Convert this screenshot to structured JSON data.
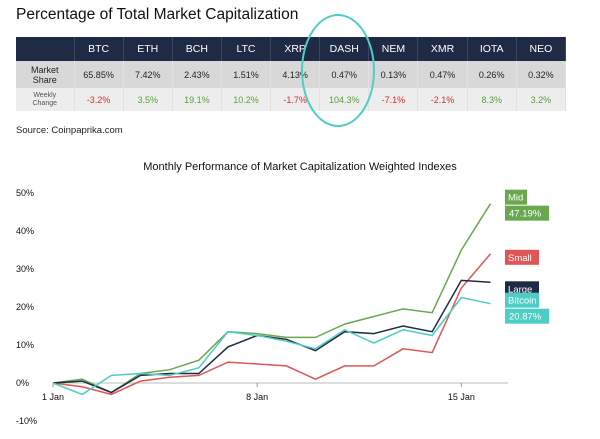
{
  "header": {
    "title": "Percentage of Total Market Capitalization",
    "source": "Source: Coinpaprika.com"
  },
  "table": {
    "coins": [
      "BTC",
      "ETH",
      "BCH",
      "LTC",
      "XRP",
      "DASH",
      "NEM",
      "XMR",
      "IOTA",
      "NEO"
    ],
    "rows": [
      {
        "label_lines": [
          "Market",
          "Share"
        ],
        "values": [
          "65.85%",
          "7.42%",
          "2.43%",
          "1.51%",
          "4.13%",
          "0.47%",
          "0.13%",
          "0.47%",
          "0.26%",
          "0.32%"
        ]
      },
      {
        "label_lines": [
          "Weekly",
          "Change"
        ],
        "values": [
          "-3.2%",
          "3.5%",
          "19.1%",
          "10.2%",
          "-1.7%",
          "104.3%",
          "-7.1%",
          "-2.1%",
          "8.3%",
          "3.2%"
        ]
      }
    ],
    "highlighted_coin": "DASH",
    "colors": {
      "header_bg": "#1f2a44",
      "negative": "#d32f2f",
      "positive": "#5b9e3a",
      "highlight": "#4ecdc4"
    }
  },
  "chart_data": {
    "type": "line",
    "title": "Monthly Performance of Market Capitalization Weighted Indexes",
    "xlabel": "",
    "ylabel": "",
    "x": [
      1,
      2,
      3,
      4,
      5,
      6,
      7,
      8,
      9,
      10,
      11,
      12,
      13,
      14,
      15,
      16
    ],
    "xticks": [
      {
        "x": 1,
        "label": "1 Jan"
      },
      {
        "x": 8,
        "label": "8 Jan"
      },
      {
        "x": 15,
        "label": "15 Jan"
      }
    ],
    "yticks": [
      {
        "y": -10,
        "label": "-10%"
      },
      {
        "y": 0,
        "label": "0%"
      },
      {
        "y": 10,
        "label": "10%"
      },
      {
        "y": 20,
        "label": "20%"
      },
      {
        "y": 30,
        "label": "30%"
      },
      {
        "y": 40,
        "label": "40%"
      },
      {
        "y": 50,
        "label": "50%"
      }
    ],
    "ylim": [
      -10,
      50
    ],
    "xlim": [
      1,
      16.6
    ],
    "grid": false,
    "series": [
      {
        "name": "Mid",
        "color": "#6aa84f",
        "end_value": "47.19%",
        "values": [
          0,
          1.0,
          -2.5,
          2.5,
          3.5,
          6.0,
          13.5,
          13.0,
          12.0,
          12.0,
          15.5,
          17.5,
          19.5,
          18.5,
          35.0,
          47.19
        ]
      },
      {
        "name": "Small",
        "color": "#e05555",
        "end_value": "",
        "values": [
          0,
          -1.0,
          -3.0,
          0.5,
          1.5,
          2.0,
          5.5,
          5.0,
          4.5,
          1.0,
          4.5,
          4.5,
          9.0,
          8.0,
          25.0,
          34.0
        ]
      },
      {
        "name": "Large",
        "color": "#1f2a44",
        "end_value": "",
        "values": [
          0,
          0.5,
          -2.5,
          2.0,
          2.5,
          2.5,
          9.5,
          12.5,
          11.5,
          8.5,
          13.5,
          13.0,
          15.0,
          13.5,
          27.0,
          26.5
        ]
      },
      {
        "name": "Bitcoin",
        "color": "#4ecdc4",
        "end_value": "20.87%",
        "values": [
          0,
          -3.0,
          2.0,
          2.5,
          2.0,
          4.0,
          13.5,
          12.5,
          11.0,
          9.0,
          14.0,
          10.5,
          14.0,
          12.5,
          22.5,
          20.87
        ]
      }
    ]
  }
}
